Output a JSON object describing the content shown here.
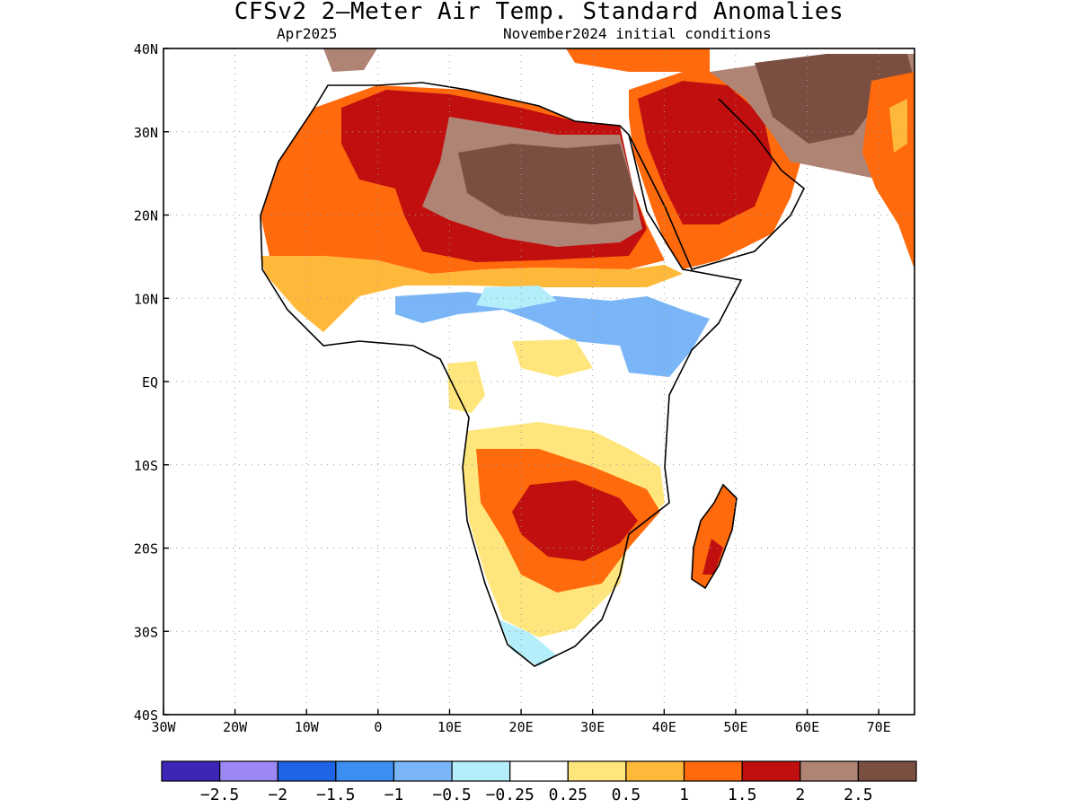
{
  "title": "CFSv2 2—Meter Air Temp. Standard Anomalies",
  "subtitle_left": "Apr2025",
  "subtitle_right": "November2024 initial conditions",
  "map": {
    "lon_range": [
      -30,
      75
    ],
    "lat_range": [
      -40,
      40
    ],
    "x_ticks": [
      {
        "value": -30,
        "label": "30W"
      },
      {
        "value": -20,
        "label": "20W"
      },
      {
        "value": -10,
        "label": "10W"
      },
      {
        "value": 0,
        "label": "0"
      },
      {
        "value": 10,
        "label": "10E"
      },
      {
        "value": 20,
        "label": "20E"
      },
      {
        "value": 30,
        "label": "30E"
      },
      {
        "value": 40,
        "label": "40E"
      },
      {
        "value": 50,
        "label": "50E"
      },
      {
        "value": 60,
        "label": "60E"
      },
      {
        "value": 70,
        "label": "70E"
      }
    ],
    "y_ticks": [
      {
        "value": 40,
        "label": "40N"
      },
      {
        "value": 30,
        "label": "30N"
      },
      {
        "value": 20,
        "label": "20N"
      },
      {
        "value": 10,
        "label": "10N"
      },
      {
        "value": 0,
        "label": "EQ"
      },
      {
        "value": -10,
        "label": "10S"
      },
      {
        "value": -20,
        "label": "20S"
      },
      {
        "value": -30,
        "label": "30S"
      },
      {
        "value": -40,
        "label": "40S"
      }
    ]
  },
  "colorbar": {
    "colors": [
      "#3d25b7",
      "#9d87f5",
      "#1f63e6",
      "#3c8ff0",
      "#7ab6f7",
      "#b4eefb",
      "#ffffff",
      "#ffe67c",
      "#ffb93a",
      "#ff6a0c",
      "#c10f0f",
      "#b08474",
      "#7a4e41"
    ],
    "labels": [
      "-2.5",
      "-2",
      "-1.5",
      "-1",
      "-0.5",
      "-0.25",
      "0.25",
      "0.5",
      "1",
      "1.5",
      "2",
      "2.5"
    ]
  }
}
